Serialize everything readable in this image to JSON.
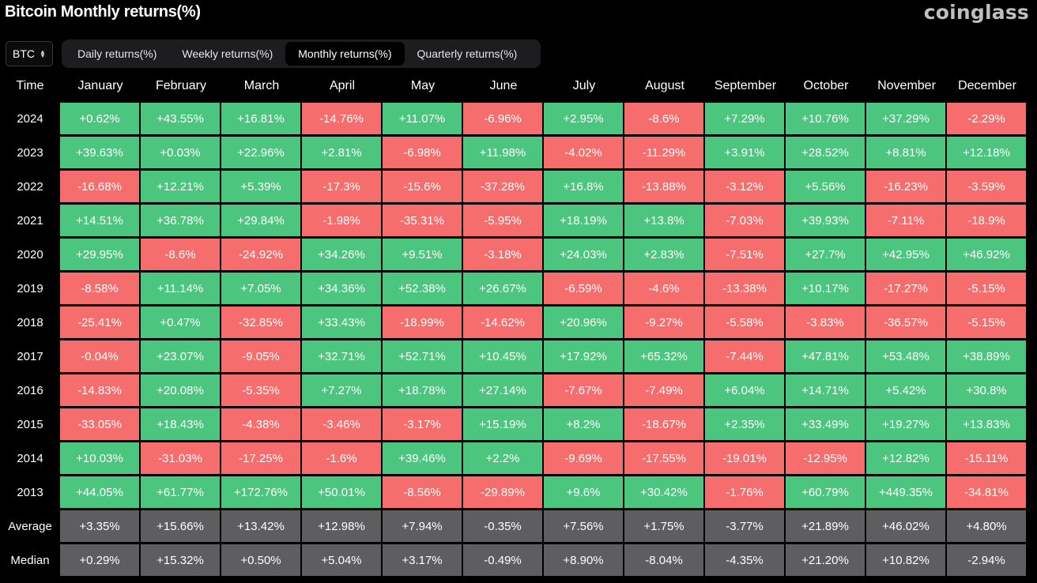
{
  "header": {
    "title": "Bitcoin Monthly returns(%)",
    "logo": "coinglass"
  },
  "asset_select": {
    "value": "BTC",
    "icon": "updown-chevron-icon"
  },
  "tabs": [
    {
      "label": "Daily returns(%)",
      "active": false
    },
    {
      "label": "Weekly returns(%)",
      "active": false
    },
    {
      "label": "Monthly returns(%)",
      "active": true
    },
    {
      "label": "Quarterly returns(%)",
      "active": false
    }
  ],
  "colors": {
    "positive": "#4cc57f",
    "negative": "#f56d6d",
    "stat": "#5e5e60",
    "background": "#000000"
  },
  "table": {
    "time_header": "Time",
    "months": [
      "January",
      "February",
      "March",
      "April",
      "May",
      "June",
      "July",
      "August",
      "September",
      "October",
      "November",
      "December"
    ],
    "rows": [
      {
        "label": "2024",
        "values": [
          "+0.62%",
          "+43.55%",
          "+16.81%",
          "-14.76%",
          "+11.07%",
          "-6.96%",
          "+2.95%",
          "-8.6%",
          "+7.29%",
          "+10.76%",
          "+37.29%",
          "-2.29%"
        ]
      },
      {
        "label": "2023",
        "values": [
          "+39.63%",
          "+0.03%",
          "+22.96%",
          "+2.81%",
          "-6.98%",
          "+11.98%",
          "-4.02%",
          "-11.29%",
          "+3.91%",
          "+28.52%",
          "+8.81%",
          "+12.18%"
        ]
      },
      {
        "label": "2022",
        "values": [
          "-16.68%",
          "+12.21%",
          "+5.39%",
          "-17.3%",
          "-15.6%",
          "-37.28%",
          "+16.8%",
          "-13.88%",
          "-3.12%",
          "+5.56%",
          "-16.23%",
          "-3.59%"
        ]
      },
      {
        "label": "2021",
        "values": [
          "+14.51%",
          "+36.78%",
          "+29.84%",
          "-1.98%",
          "-35.31%",
          "-5.95%",
          "+18.19%",
          "+13.8%",
          "-7.03%",
          "+39.93%",
          "-7.11%",
          "-18.9%"
        ]
      },
      {
        "label": "2020",
        "values": [
          "+29.95%",
          "-8.6%",
          "-24.92%",
          "+34.26%",
          "+9.51%",
          "-3.18%",
          "+24.03%",
          "+2.83%",
          "-7.51%",
          "+27.7%",
          "+42.95%",
          "+46.92%"
        ]
      },
      {
        "label": "2019",
        "values": [
          "-8.58%",
          "+11.14%",
          "+7.05%",
          "+34.36%",
          "+52.38%",
          "+26.67%",
          "-6.59%",
          "-4.6%",
          "-13.38%",
          "+10.17%",
          "-17.27%",
          "-5.15%"
        ]
      },
      {
        "label": "2018",
        "values": [
          "-25.41%",
          "+0.47%",
          "-32.85%",
          "+33.43%",
          "-18.99%",
          "-14.62%",
          "+20.96%",
          "-9.27%",
          "-5.58%",
          "-3.83%",
          "-36.57%",
          "-5.15%"
        ]
      },
      {
        "label": "2017",
        "values": [
          "-0.04%",
          "+23.07%",
          "-9.05%",
          "+32.71%",
          "+52.71%",
          "+10.45%",
          "+17.92%",
          "+65.32%",
          "-7.44%",
          "+47.81%",
          "+53.48%",
          "+38.89%"
        ]
      },
      {
        "label": "2016",
        "values": [
          "-14.83%",
          "+20.08%",
          "-5.35%",
          "+7.27%",
          "+18.78%",
          "+27.14%",
          "-7.67%",
          "-7.49%",
          "+6.04%",
          "+14.71%",
          "+5.42%",
          "+30.8%"
        ]
      },
      {
        "label": "2015",
        "values": [
          "-33.05%",
          "+18.43%",
          "-4.38%",
          "-3.46%",
          "-3.17%",
          "+15.19%",
          "+8.2%",
          "-18.67%",
          "+2.35%",
          "+33.49%",
          "+19.27%",
          "+13.83%"
        ]
      },
      {
        "label": "2014",
        "values": [
          "+10.03%",
          "-31.03%",
          "-17.25%",
          "-1.6%",
          "+39.46%",
          "+2.2%",
          "-9.69%",
          "-17.55%",
          "-19.01%",
          "-12.95%",
          "+12.82%",
          "-15.11%"
        ]
      },
      {
        "label": "2013",
        "values": [
          "+44.05%",
          "+61.77%",
          "+172.76%",
          "+50.01%",
          "-8.56%",
          "-29.89%",
          "+9.6%",
          "+30.42%",
          "-1.76%",
          "+60.79%",
          "+449.35%",
          "-34.81%"
        ]
      }
    ],
    "stats": [
      {
        "label": "Average",
        "values": [
          "+3.35%",
          "+15.66%",
          "+13.42%",
          "+12.98%",
          "+7.94%",
          "-0.35%",
          "+7.56%",
          "+1.75%",
          "-3.77%",
          "+21.89%",
          "+46.02%",
          "+4.80%"
        ]
      },
      {
        "label": "Median",
        "values": [
          "+0.29%",
          "+15.32%",
          "+0.50%",
          "+5.04%",
          "+3.17%",
          "-0.49%",
          "+8.90%",
          "-8.04%",
          "-4.35%",
          "+21.20%",
          "+10.82%",
          "-2.94%"
        ]
      }
    ]
  }
}
